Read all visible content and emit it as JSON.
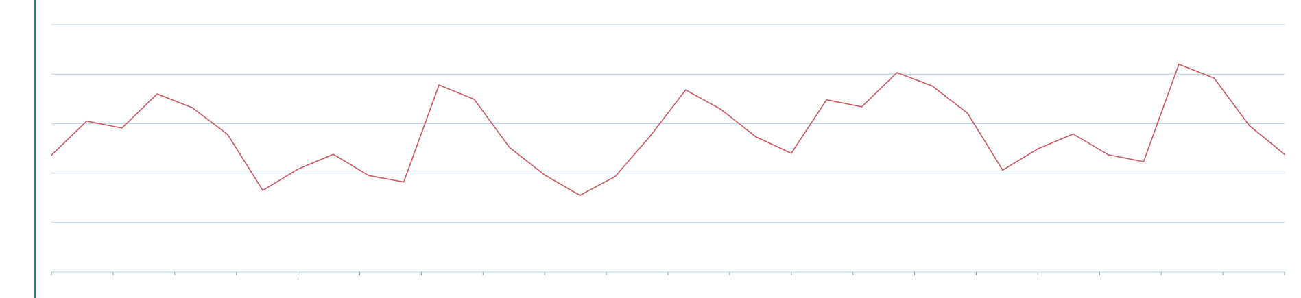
{
  "chart_data": {
    "type": "line",
    "title": "",
    "xlabel": "",
    "ylabel": "",
    "grid": true,
    "ylim": [
      0,
      5
    ],
    "colors": {
      "series": "#c9555d",
      "grid": "#a8d7e6",
      "axis": "#2b7a99"
    },
    "series": [
      {
        "values": [
          2.36,
          3.05,
          2.91,
          3.6,
          3.32,
          2.78,
          1.65,
          2.08,
          2.38,
          1.95,
          1.82,
          3.78,
          3.49,
          2.52,
          1.96,
          1.55,
          1.93,
          2.75,
          3.68,
          3.29,
          2.73,
          2.4,
          3.48,
          3.34,
          4.03,
          3.76,
          3.21,
          2.06,
          2.49,
          2.79,
          2.37,
          2.23,
          4.2,
          3.92,
          2.96,
          2.38
        ]
      }
    ]
  }
}
